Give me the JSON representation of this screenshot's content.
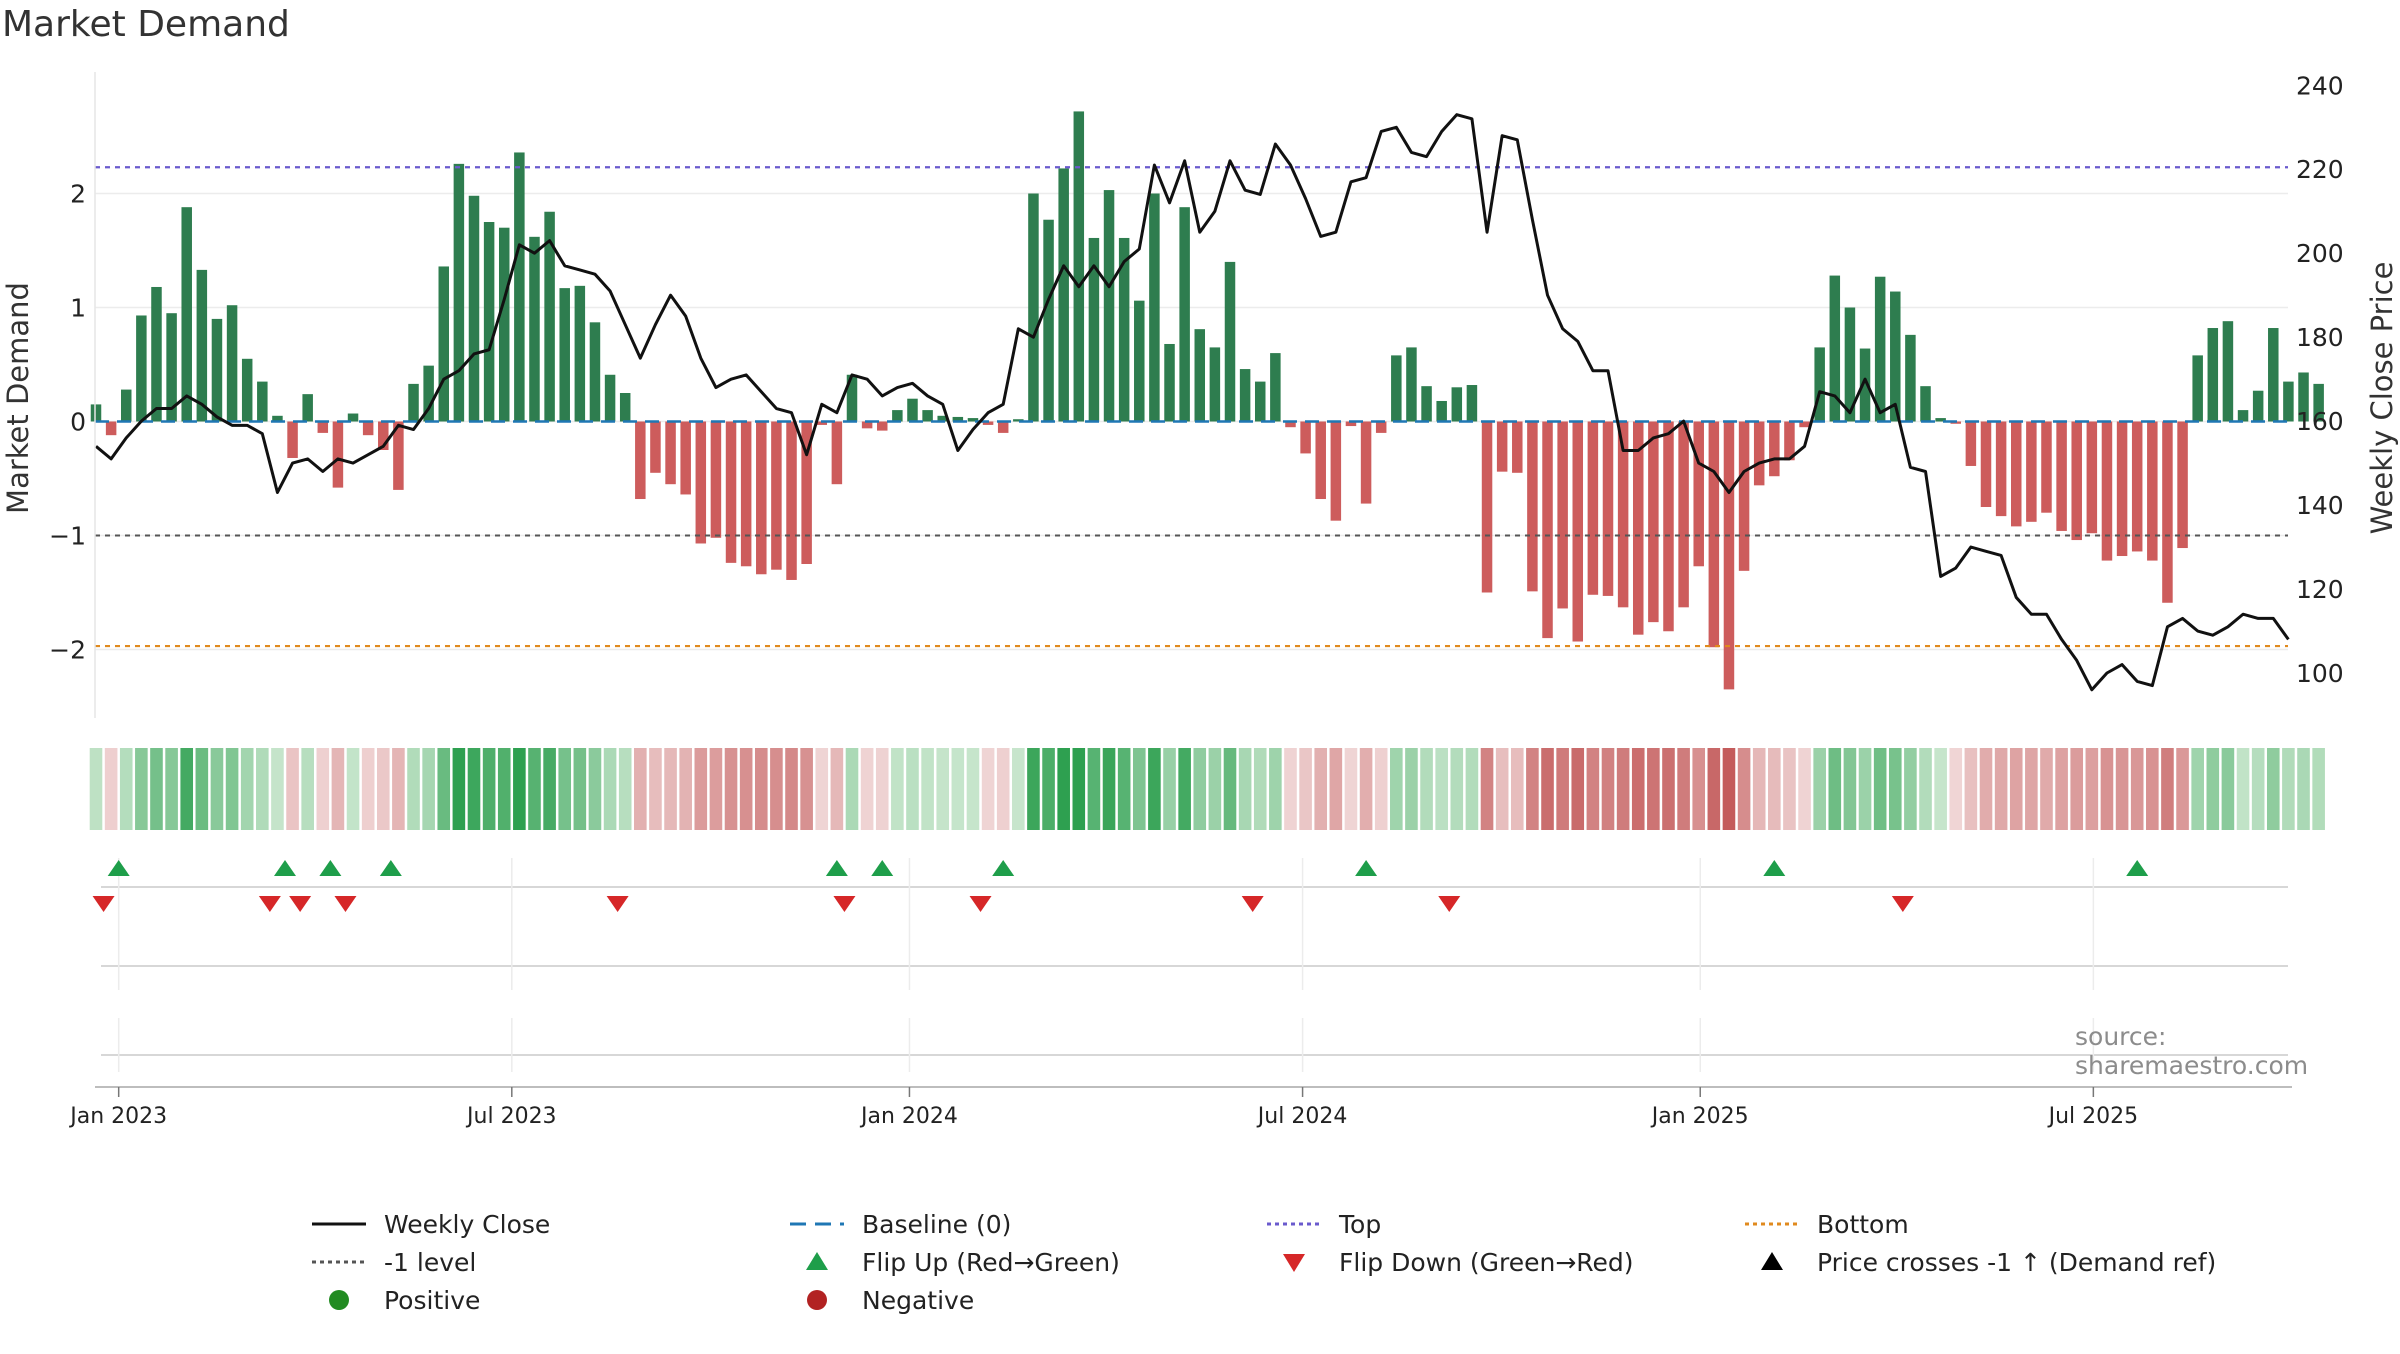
{
  "title": "Market Demand",
  "source_note": "source: sharemaestro.com",
  "colors": {
    "positive": "#2e7d4f",
    "negative": "#cd5c5c",
    "price": "#111111",
    "baseline": "#1f77b4",
    "top": "#6a5acd",
    "bottom": "#e08a1e",
    "minus_one": "#555555",
    "flip_up": "#1e9e4a",
    "flip_down": "#d62728",
    "legend_positive": "#228b22",
    "legend_negative": "#b22222"
  },
  "legend": [
    {
      "label": "Weekly Close",
      "glyph": "line-solid",
      "color": "#111111"
    },
    {
      "label": "Baseline (0)",
      "glyph": "line-dash",
      "color": "#1f77b4"
    },
    {
      "label": "Top",
      "glyph": "line-dot",
      "color": "#6a5acd"
    },
    {
      "label": "Bottom",
      "glyph": "line-dot",
      "color": "#e08a1e"
    },
    {
      "label": "-1 level",
      "glyph": "line-dot",
      "color": "#555555"
    },
    {
      "label": "Flip Up (Red→Green)",
      "glyph": "tri-up",
      "color": "#1e9e4a"
    },
    {
      "label": "Flip Down (Green→Red)",
      "glyph": "tri-down",
      "color": "#d62728"
    },
    {
      "label": "Price crosses -1 ↑ (Demand ref)",
      "glyph": "tri-up",
      "color": "#000000"
    },
    {
      "label": "Positive",
      "glyph": "dot",
      "color": "#228b22"
    },
    {
      "label": "Negative",
      "glyph": "dot",
      "color": "#b22222"
    }
  ],
  "chart_data": {
    "type": "bar",
    "title": "Market Demand",
    "xlabel": "",
    "ylabel": "Market Demand",
    "y2label": "Weekly Close Price",
    "ylim": [
      -2.6,
      2.9
    ],
    "y2lim": [
      94,
      240
    ],
    "yticks": [
      -2,
      -1,
      0,
      1,
      2
    ],
    "ytick_labels": [
      "−2",
      "−1",
      "0",
      "1",
      "2"
    ],
    "y2ticks": [
      100,
      120,
      140,
      160,
      180,
      200,
      220,
      240
    ],
    "x_start_week_offset": -1.5,
    "xticks": [
      {
        "label": "Jan 2023",
        "week": 0
      },
      {
        "label": "Jul 2023",
        "week": 26
      },
      {
        "label": "Jan 2024",
        "week": 52.3
      },
      {
        "label": "Jul 2024",
        "week": 78.3
      },
      {
        "label": "Jan 2025",
        "week": 104.6
      },
      {
        "label": "Jul 2025",
        "week": 130.6
      }
    ],
    "reference_lines": {
      "top": 2.23,
      "bottom": -1.97,
      "minus_one": -1.0,
      "baseline": 0
    },
    "series": [
      {
        "name": "Market Demand",
        "values": [
          0.15,
          -0.12,
          0.28,
          0.93,
          1.18,
          0.95,
          1.88,
          1.33,
          0.9,
          1.02,
          0.55,
          0.35,
          0.05,
          -0.32,
          0.24,
          -0.1,
          -0.58,
          0.07,
          -0.12,
          -0.25,
          -0.6,
          0.33,
          0.49,
          1.36,
          2.26,
          1.98,
          1.75,
          1.7,
          2.36,
          1.62,
          1.84,
          1.17,
          1.19,
          0.87,
          0.41,
          0.25,
          -0.68,
          -0.45,
          -0.55,
          -0.64,
          -1.07,
          -1.02,
          -1.24,
          -1.27,
          -1.34,
          -1.3,
          -1.39,
          -1.25,
          -0.03,
          -0.55,
          0.41,
          -0.06,
          -0.08,
          0.1,
          0.2,
          0.1,
          0.05,
          0.04,
          0.03,
          -0.03,
          -0.1,
          0.02,
          2.0,
          1.77,
          2.22,
          2.72,
          1.61,
          2.03,
          1.61,
          1.06,
          2.0,
          0.68,
          1.88,
          0.81,
          0.65,
          1.4,
          0.46,
          0.35,
          0.6,
          -0.05,
          -0.28,
          -0.68,
          -0.87,
          -0.04,
          -0.72,
          -0.1,
          0.58,
          0.65,
          0.31,
          0.18,
          0.3,
          0.32,
          -1.5,
          -0.44,
          -0.45,
          -1.49,
          -1.9,
          -1.64,
          -1.93,
          -1.52,
          -1.53,
          -1.63,
          -1.87,
          -1.76,
          -1.84,
          -1.63,
          -1.27,
          -1.98,
          -2.35,
          -1.31,
          -0.56,
          -0.48,
          -0.34,
          -0.05,
          0.65,
          1.28,
          1.0,
          0.64,
          1.27,
          1.14,
          0.76,
          0.31,
          0.03,
          -0.02,
          -0.39,
          -0.75,
          -0.83,
          -0.92,
          -0.88,
          -0.8,
          -0.96,
          -1.04,
          -0.98,
          -1.22,
          -1.18,
          -1.14,
          -1.22,
          -1.59,
          -1.11,
          0.58,
          0.82,
          0.88,
          0.1,
          0.27,
          0.82,
          0.35,
          0.43,
          0.33
        ]
      },
      {
        "name": "Weekly Close",
        "values": [
          154,
          151,
          156,
          160,
          163,
          163,
          166,
          164,
          161,
          159,
          159,
          157,
          143,
          150,
          151,
          148,
          151,
          150,
          152,
          154,
          159,
          158,
          163,
          170,
          172,
          176,
          177,
          189,
          202,
          200,
          203,
          197,
          196,
          195,
          191,
          183,
          175,
          183,
          190,
          185,
          175,
          168,
          170,
          171,
          167,
          163,
          162,
          152,
          164,
          162,
          171,
          170,
          166,
          168,
          169,
          166,
          164,
          153,
          158,
          162,
          164,
          182,
          180,
          189,
          197,
          192,
          197,
          192,
          198,
          201,
          221,
          212,
          222,
          205,
          210,
          222,
          215,
          214,
          226,
          221,
          213,
          204,
          205,
          217,
          218,
          229,
          230,
          224,
          223,
          229,
          233,
          232,
          205,
          228,
          227,
          208,
          190,
          182,
          179,
          172,
          172,
          153,
          153,
          156,
          157,
          160,
          150,
          148,
          143,
          148,
          150,
          151,
          151,
          154,
          167,
          166,
          162,
          170,
          162,
          164,
          149,
          148,
          123,
          125,
          130,
          129,
          128,
          118,
          114,
          114,
          108,
          103,
          96,
          100,
          102,
          98,
          97,
          111,
          113,
          110,
          109,
          111,
          114,
          113,
          113,
          108
        ]
      }
    ],
    "strip": {
      "description": "demand heat strip, one cell per week, colour from series value"
    },
    "flip_up_weeks": [
      0,
      11,
      14,
      18,
      47.5,
      50.5,
      58.5,
      82.5,
      109.5,
      133.5
    ],
    "flip_down_weeks": [
      -1,
      10,
      12,
      15,
      33,
      48,
      57,
      75,
      88,
      118
    ]
  }
}
